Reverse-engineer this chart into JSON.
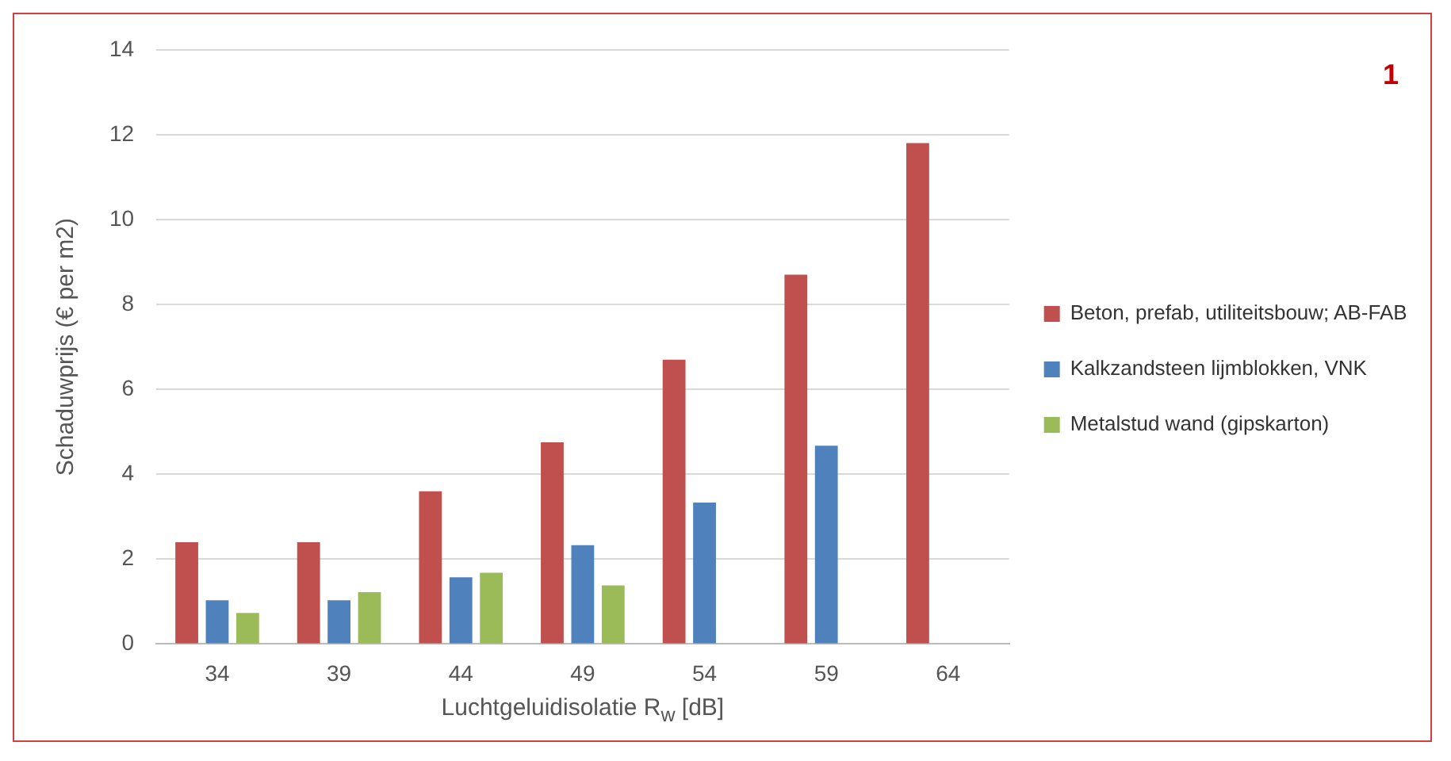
{
  "chart_data": {
    "type": "bar",
    "xlabel": "Luchtgeluidisolatie R$_{w}$ [dB]",
    "ylabel": "Schaduwprijs (€ per m2)",
    "categories": [
      "34",
      "39",
      "44",
      "49",
      "54",
      "59",
      "64"
    ],
    "ylim": [
      0,
      14
    ],
    "yticks": [
      0,
      2,
      4,
      6,
      8,
      10,
      12,
      14
    ],
    "grid": "y",
    "legend": "right",
    "annotations": [
      "1"
    ],
    "series": [
      {
        "name": "Beton, prefab, utiliteitsbouw; AB-FAB",
        "color": "#c0504d",
        "values": [
          2.4,
          2.4,
          3.6,
          4.75,
          6.7,
          8.7,
          11.8
        ]
      },
      {
        "name": "Kalkzandsteen lijmblokken, VNK",
        "color": "#4f81bd",
        "values": [
          1.03,
          1.03,
          1.57,
          2.33,
          3.33,
          4.67,
          null
        ]
      },
      {
        "name": "Metalstud wand (gipskarton)",
        "color": "#9bbb59",
        "values": [
          0.73,
          1.22,
          1.68,
          1.38,
          null,
          null,
          null
        ]
      }
    ]
  }
}
